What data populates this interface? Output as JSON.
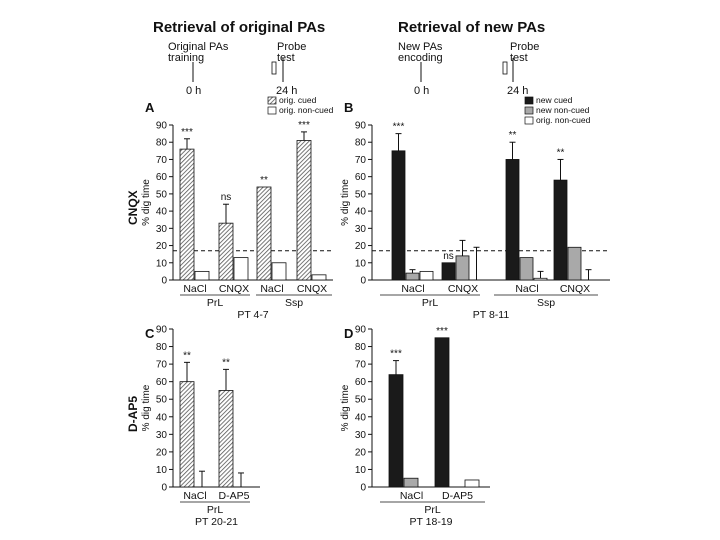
{
  "header": {
    "left_title": "Retrieval of original PAs",
    "right_title": "Retrieval of new PAs",
    "left_timeline": {
      "event1": "Original PAs training",
      "event1_lines": [
        "Original PAs",
        "training"
      ],
      "event2_lines": [
        "Probe",
        "test"
      ],
      "t1": "0 h",
      "t2": "24 h"
    },
    "right_timeline": {
      "event1_lines": [
        "New PAs",
        "encoding"
      ],
      "event2_lines": [
        "Probe",
        "test"
      ],
      "t1": "0 h",
      "t2": "24 h"
    }
  },
  "row_labels": {
    "top": "CNQX",
    "bottom": "D-AP5"
  },
  "colors": {
    "cued_dark": "#1a1a1a",
    "noncued_gray": "#a9a9a9",
    "hatch": "#555555",
    "white": "#ffffff"
  },
  "chart_data": [
    {
      "panel": "A",
      "type": "bar",
      "ylabel": "% dig time",
      "ylim": [
        0,
        90
      ],
      "yticks": [
        0,
        10,
        20,
        30,
        40,
        50,
        60,
        70,
        80,
        90
      ],
      "chance_line": 17,
      "legend": [
        {
          "label": "orig. cued",
          "style": "hatch"
        },
        {
          "label": "orig. non-cued",
          "style": "white"
        }
      ],
      "categories": [
        "NaCl",
        "CNQX",
        "NaCl",
        "CNQX"
      ],
      "groups": [
        {
          "label": "PrL",
          "categories": [
            0,
            1
          ]
        },
        {
          "label": "Ssp",
          "categories": [
            2,
            3
          ]
        }
      ],
      "series": [
        {
          "name": "orig. cued",
          "values": [
            76,
            33,
            54,
            81
          ],
          "errors": [
            6,
            11,
            0,
            5
          ],
          "sig": [
            "***",
            "ns",
            "**",
            "***"
          ]
        },
        {
          "name": "orig. non-cued",
          "values": [
            5,
            13,
            10,
            3
          ],
          "errors": [
            0,
            0,
            0,
            0
          ]
        }
      ],
      "xlabel": "PT 4-7"
    },
    {
      "panel": "B",
      "type": "bar",
      "ylabel": "% dig time",
      "ylim": [
        0,
        90
      ],
      "yticks": [
        0,
        10,
        20,
        30,
        40,
        50,
        60,
        70,
        80,
        90
      ],
      "chance_line": 17,
      "legend": [
        {
          "label": "new cued",
          "style": "dark"
        },
        {
          "label": "new non-cued",
          "style": "gray"
        },
        {
          "label": "orig. non-cued",
          "style": "white"
        }
      ],
      "categories": [
        "NaCl",
        "CNQX",
        "NaCl",
        "CNQX"
      ],
      "groups": [
        {
          "label": "PrL",
          "categories": [
            0,
            1
          ]
        },
        {
          "label": "Ssp",
          "categories": [
            2,
            3
          ]
        }
      ],
      "series": [
        {
          "name": "new cued",
          "values": [
            75,
            10,
            70,
            58
          ],
          "errors": [
            10,
            0,
            10,
            12
          ],
          "sig": [
            "***",
            "ns",
            "**",
            "**"
          ]
        },
        {
          "name": "new non-cued",
          "values": [
            4,
            14,
            13,
            19
          ],
          "errors": [
            2,
            9,
            0,
            0
          ]
        },
        {
          "name": "orig. non-cued",
          "values": [
            5,
            0,
            1,
            0
          ],
          "errors": [
            0,
            19,
            4,
            6
          ]
        }
      ],
      "xlabel": "PT 8-11"
    },
    {
      "panel": "C",
      "type": "bar",
      "ylabel": "% dig time",
      "ylim": [
        0,
        90
      ],
      "yticks": [
        0,
        10,
        20,
        30,
        40,
        50,
        60,
        70,
        80,
        90
      ],
      "categories": [
        "NaCl",
        "D-AP5"
      ],
      "groups": [
        {
          "label": "PrL",
          "categories": [
            0,
            1
          ]
        }
      ],
      "series": [
        {
          "name": "orig. cued",
          "values": [
            60,
            55
          ],
          "errors": [
            11,
            12
          ],
          "sig": [
            "**",
            "**"
          ]
        },
        {
          "name": "orig. non-cued",
          "values": [
            0,
            0
          ],
          "errors": [
            9,
            8
          ]
        }
      ],
      "xlabel": "PT 20-21"
    },
    {
      "panel": "D",
      "type": "bar",
      "ylabel": "% dig time",
      "ylim": [
        0,
        90
      ],
      "yticks": [
        0,
        10,
        20,
        30,
        40,
        50,
        60,
        70,
        80,
        90
      ],
      "categories": [
        "NaCl",
        "D-AP5"
      ],
      "groups": [
        {
          "label": "PrL",
          "categories": [
            0,
            1
          ]
        }
      ],
      "series": [
        {
          "name": "new cued",
          "values": [
            64,
            85
          ],
          "errors": [
            8,
            0
          ],
          "sig": [
            "***",
            "***"
          ]
        },
        {
          "name": "new non-cued",
          "values": [
            5,
            0
          ],
          "errors": [
            0,
            0
          ]
        },
        {
          "name": "orig. non-cued",
          "values": [
            0,
            4
          ],
          "errors": [
            0,
            0
          ]
        }
      ],
      "xlabel": "PT 18-19"
    }
  ]
}
